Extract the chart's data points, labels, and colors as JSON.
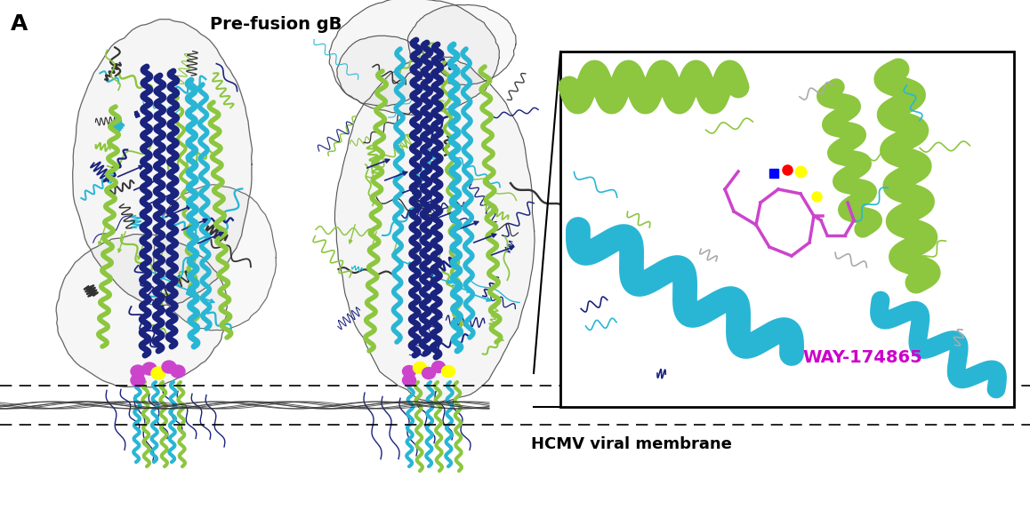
{
  "figure_label": "A",
  "figure_label_fontsize": 18,
  "figure_label_fontweight": "bold",
  "title_text": "Pre-fusion gB",
  "title_fontsize": 14,
  "title_fontweight": "bold",
  "membrane_label": "HCMV viral membrane",
  "membrane_label_fontsize": 13,
  "membrane_label_fontweight": "bold",
  "way_label": "WAY-174865",
  "way_label_color": "#CC00CC",
  "way_label_fontsize": 14,
  "way_label_fontweight": "bold",
  "bg_color": "white",
  "figsize": [
    11.58,
    5.92
  ],
  "dpi": 100,
  "navy": "#1a237e",
  "cyan_col": "#29b6d4",
  "lime_col": "#8dc63f",
  "magenta_col": "#cc44cc",
  "yellow_col": "#ffff00",
  "red_col": "#ff0000",
  "dark_col": "#1a1a6e",
  "gray_envelope": "#c8c8c8",
  "gray_envelope2": "#b8b8b8"
}
